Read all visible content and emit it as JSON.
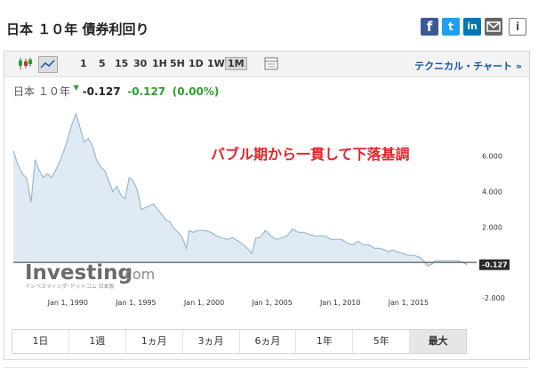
{
  "header": {
    "title": "日本 １０年 債券利回り",
    "social": {
      "facebook": "f",
      "twitter": "t",
      "linkedin": "in",
      "info": "i"
    }
  },
  "toolbar": {
    "timeframes": [
      "1",
      "5",
      "15",
      "30",
      "1H",
      "5H",
      "1D",
      "1W",
      "1M"
    ],
    "active_timeframe": "1M",
    "technical_chart": "テクニカル・チャート »"
  },
  "quote": {
    "name": "日本 １０年",
    "last": "-0.127",
    "change": "-0.127",
    "change_pct": "(0.00%)"
  },
  "annotation": "バブル期から一貫して下落基調",
  "watermark": {
    "brand": "Investing",
    "suffix": ".com",
    "sub": "インベスティング･ドットコム 日本版"
  },
  "range_buttons": [
    "1日",
    "1週",
    "1ヵ月",
    "3ヵ月",
    "6ヵ月",
    "1年",
    "5年",
    "最大"
  ],
  "active_range": "最大",
  "colors": {
    "line": "#9ab7cf",
    "fill": "#dfeaf4",
    "annotation": "#e8222a",
    "positive": "#2f9e2f",
    "link": "#1256a0"
  },
  "chart_data": {
    "type": "area",
    "x": [
      1986.0,
      1986.3,
      1986.6,
      1987.0,
      1987.3,
      1987.6,
      1987.9,
      1988.2,
      1988.5,
      1988.8,
      1989.1,
      1989.4,
      1989.7,
      1990.0,
      1990.3,
      1990.6,
      1990.9,
      1991.2,
      1991.5,
      1991.8,
      1992.1,
      1992.4,
      1992.7,
      1993.0,
      1993.3,
      1993.6,
      1993.9,
      1994.2,
      1994.5,
      1994.8,
      1995.1,
      1995.4,
      1995.7,
      1996.0,
      1996.3,
      1996.6,
      1996.9,
      1997.2,
      1997.5,
      1997.8,
      1998.1,
      1998.4,
      1998.7,
      1998.9,
      1999.2,
      1999.5,
      1999.8,
      2000.1,
      2000.5,
      2000.9,
      2001.3,
      2001.7,
      2002.1,
      2002.5,
      2002.9,
      2003.3,
      2003.5,
      2003.8,
      2004.1,
      2004.5,
      2004.9,
      2005.3,
      2005.7,
      2006.1,
      2006.5,
      2006.9,
      2007.3,
      2007.7,
      2008.1,
      2008.5,
      2008.9,
      2009.3,
      2009.7,
      2010.1,
      2010.5,
      2010.9,
      2011.3,
      2011.7,
      2012.1,
      2012.5,
      2012.9,
      2013.3,
      2013.5,
      2013.8,
      2014.2,
      2014.6,
      2015.0,
      2015.4,
      2015.8,
      2016.1,
      2016.4,
      2016.7,
      2017.0,
      2017.4,
      2017.8,
      2018.2,
      2018.6,
      2019.0,
      2019.3
    ],
    "values": [
      6.3,
      5.6,
      5.1,
      4.7,
      3.4,
      5.8,
      5.2,
      4.8,
      5.0,
      4.8,
      5.2,
      5.7,
      6.3,
      7.0,
      7.8,
      8.4,
      7.6,
      6.8,
      7.0,
      6.6,
      5.8,
      5.4,
      5.2,
      4.6,
      4.0,
      4.3,
      3.8,
      3.6,
      4.8,
      4.6,
      4.1,
      3.0,
      3.1,
      3.2,
      3.3,
      3.0,
      2.7,
      2.4,
      2.3,
      1.9,
      1.7,
      1.4,
      0.8,
      1.8,
      1.7,
      1.8,
      1.8,
      1.8,
      1.7,
      1.5,
      1.4,
      1.3,
      1.4,
      1.2,
      1.0,
      0.7,
      0.5,
      1.4,
      1.4,
      1.8,
      1.5,
      1.3,
      1.4,
      1.5,
      1.9,
      1.7,
      1.7,
      1.6,
      1.5,
      1.5,
      1.5,
      1.3,
      1.3,
      1.3,
      1.1,
      1.0,
      1.2,
      1.0,
      1.0,
      0.8,
      0.8,
      0.7,
      0.6,
      0.7,
      0.6,
      0.5,
      0.4,
      0.4,
      0.3,
      0.1,
      -0.2,
      -0.1,
      0.1,
      0.1,
      0.1,
      0.1,
      0.1,
      0.0,
      -0.127
    ],
    "xlim": [
      1986,
      2020
    ],
    "ylim": [
      -2,
      9
    ],
    "y_ticks": [
      -2,
      0,
      2,
      4,
      6
    ],
    "y_tick_labels": [
      "-2.000",
      "",
      "2.000",
      "4.000",
      "6.000"
    ],
    "x_tick_labels": [
      "Jan 1, 1990",
      "Jan 1, 1995",
      "Jan 1, 2000",
      "Jan 1, 2005",
      "Jan 1, 2010",
      "Jan 1, 2015"
    ],
    "x_tick_values": [
      1990,
      1995,
      2000,
      2005,
      2010,
      2015
    ],
    "last_value_label": "-0.127",
    "reference_line": 0,
    "grid": false
  }
}
